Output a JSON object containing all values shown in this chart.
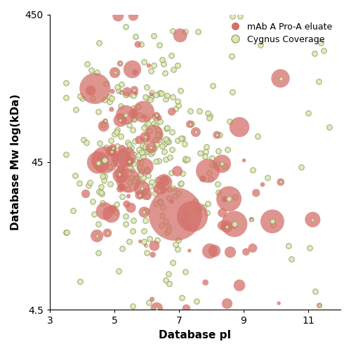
{
  "xlabel": "Database pI",
  "ylabel": "Database Mw log(kDa)",
  "xlim": [
    3,
    12
  ],
  "ylim_log": [
    4.5,
    450
  ],
  "xticks": [
    3,
    5,
    7,
    9,
    11
  ],
  "yticks": [
    4.5,
    45,
    450
  ],
  "ytick_labels": [
    "4.5",
    "45",
    "450"
  ],
  "background_color": "#ffffff",
  "red_color": "#d4706a",
  "gray_fill_color": "#dde8b0",
  "gray_edge_color": "#8a9960",
  "legend_labels": [
    "mAb A Pro-A eluate",
    "Cygnus Coverage"
  ],
  "gray_fixed_size": 30,
  "red_base_size": 40
}
